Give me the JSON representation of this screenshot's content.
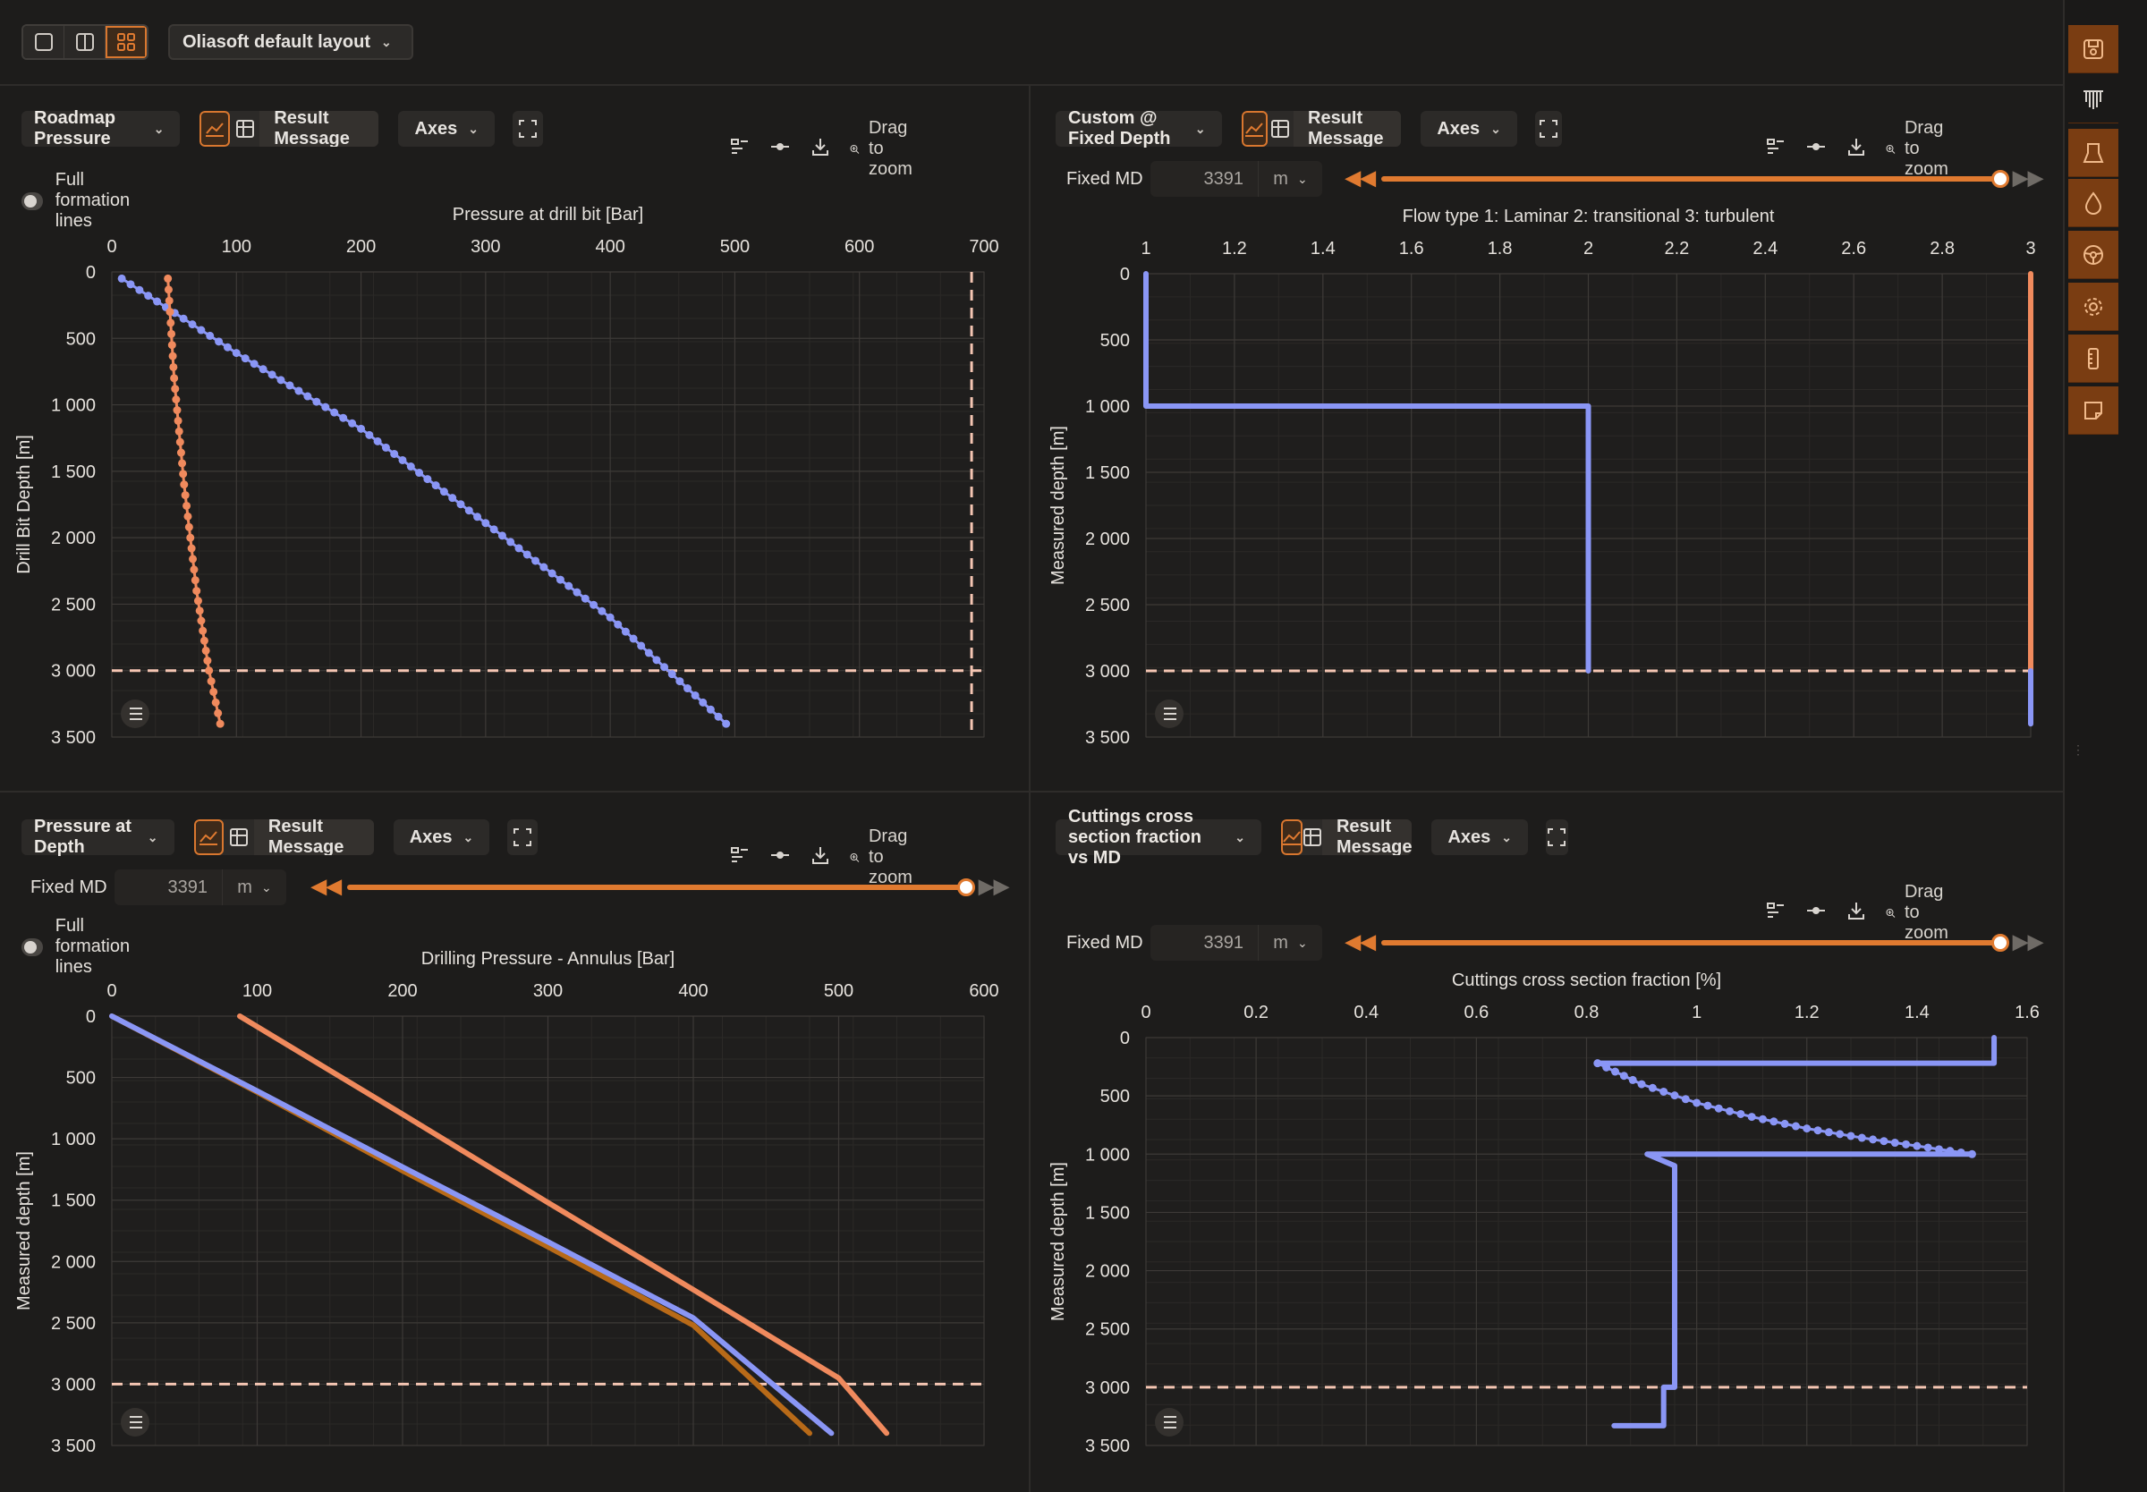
{
  "toolbar": {
    "layout_label": "Oliasoft default layout",
    "view_buttons": [
      "single-view-icon",
      "split-view-icon",
      "grid-view-icon"
    ]
  },
  "sidebar": {
    "icons": [
      "save-icon",
      "well-schematic-icon",
      "bha-icon",
      "fluid-icon",
      "steering-wheel-icon",
      "settings-gear-icon",
      "ruler-icon",
      "note-icon"
    ]
  },
  "common": {
    "result_message": "Result Message",
    "axes": "Axes",
    "drag_to_zoom": "Drag to zoom",
    "full_formation_lines": "Full formation lines",
    "fixed_md_label": "Fixed MD",
    "fixed_md_value": "3391",
    "fixed_md_unit": "m"
  },
  "panels": {
    "tl": {
      "title": "Roadmap Pressure"
    },
    "tr": {
      "title": "Custom @ Fixed Depth"
    },
    "bl": {
      "title": "Pressure at Depth"
    },
    "br": {
      "title": "Cuttings cross section fraction vs MD"
    }
  },
  "colors": {
    "blue": "#8a96f5",
    "orange": "#f08a5d",
    "brown": "#b86a18",
    "accent": "#e07a30",
    "dashed": "#f5c6b3"
  },
  "chart_data": [
    {
      "id": "tl",
      "type": "line",
      "title": "Pressure at drill bit [Bar]",
      "xlabel": "Pressure at drill bit [Bar]",
      "ylabel": "Drill Bit Depth [m]",
      "xlim": [
        0,
        700
      ],
      "ylim": [
        0,
        3500
      ],
      "xticks": [
        0,
        100,
        200,
        300,
        400,
        500,
        600,
        700
      ],
      "xtick_labels": [
        "0",
        "100",
        "200",
        "300",
        "400",
        "500",
        "600",
        "700"
      ],
      "yticks": [
        0,
        500,
        1000,
        1500,
        2000,
        2500,
        3000,
        3500
      ],
      "ytick_labels": [
        "0",
        "500",
        "1 000",
        "1 500",
        "2 000",
        "2 500",
        "3 000",
        "3 500"
      ],
      "hlines": [
        3000
      ],
      "vlines": [
        690
      ],
      "series": [
        {
          "color": "blue",
          "style": "dots",
          "x": [
            8,
            100,
            200,
            300,
            400,
            493
          ],
          "y": [
            50,
            610,
            1180,
            1890,
            2600,
            3400
          ]
        },
        {
          "color": "orange",
          "style": "dots",
          "x": [
            45,
            50,
            58,
            68,
            78,
            87
          ],
          "y": [
            50,
            800,
            1600,
            2400,
            3000,
            3400
          ]
        }
      ]
    },
    {
      "id": "tr",
      "type": "line",
      "title": "Flow type 1: Laminar 2: transitional 3: turbulent",
      "xlabel": "Flow type 1: Laminar 2: transitional 3: turbulent",
      "ylabel": "Measured depth [m]",
      "xlim": [
        1,
        3
      ],
      "ylim": [
        0,
        3500
      ],
      "xticks": [
        1,
        1.2,
        1.4,
        1.6,
        1.8,
        2,
        2.2,
        2.4,
        2.6,
        2.8,
        3
      ],
      "xtick_labels": [
        "1",
        "1.2",
        "1.4",
        "1.6",
        "1.8",
        "2",
        "2.2",
        "2.4",
        "2.6",
        "2.8",
        "3"
      ],
      "yticks": [
        0,
        500,
        1000,
        1500,
        2000,
        2500,
        3000,
        3500
      ],
      "ytick_labels": [
        "0",
        "500",
        "1 000",
        "1 500",
        "2 000",
        "2 500",
        "3 000",
        "3 500"
      ],
      "hlines": [
        3000
      ],
      "vlines": [],
      "series": [
        {
          "color": "blue",
          "style": "line",
          "x": [
            1,
            1,
            2,
            2
          ],
          "y": [
            0,
            1000,
            1000,
            3000
          ]
        },
        {
          "color": "orange",
          "style": "line",
          "x": [
            3,
            3
          ],
          "y": [
            0,
            3000
          ]
        },
        {
          "color": "blue",
          "style": "line",
          "x": [
            3,
            3
          ],
          "y": [
            3000,
            3400
          ]
        }
      ]
    },
    {
      "id": "bl",
      "type": "line",
      "title": "Drilling Pressure - Annulus [Bar]",
      "xlabel": "Drilling Pressure - Annulus [Bar]",
      "ylabel": "Measured depth [m]",
      "xlim": [
        0,
        600
      ],
      "ylim": [
        0,
        3500
      ],
      "xticks": [
        0,
        100,
        200,
        300,
        400,
        500,
        600
      ],
      "xtick_labels": [
        "0",
        "100",
        "200",
        "300",
        "400",
        "500",
        "600"
      ],
      "yticks": [
        0,
        500,
        1000,
        1500,
        2000,
        2500,
        3000,
        3500
      ],
      "ytick_labels": [
        "0",
        "500",
        "1 000",
        "1 500",
        "2 000",
        "2 500",
        "3 000",
        "3 500"
      ],
      "hlines": [
        3000
      ],
      "vlines": [],
      "series": [
        {
          "color": "brown",
          "style": "line",
          "x": [
            0,
            100,
            200,
            300,
            400,
            480
          ],
          "y": [
            0,
            620,
            1260,
            1880,
            2520,
            3400
          ]
        },
        {
          "color": "blue",
          "style": "line",
          "x": [
            0,
            100,
            200,
            300,
            400,
            495
          ],
          "y": [
            0,
            610,
            1230,
            1840,
            2460,
            3400
          ]
        },
        {
          "color": "orange",
          "style": "line",
          "x": [
            88,
            200,
            300,
            400,
            500,
            533
          ],
          "y": [
            0,
            800,
            1520,
            2230,
            2950,
            3400
          ]
        }
      ]
    },
    {
      "id": "br",
      "type": "line",
      "title": "Cuttings cross section fraction [%]",
      "xlabel": "Cuttings cross section fraction [%]",
      "ylabel": "Measured depth [m]",
      "xlim": [
        0,
        1.6
      ],
      "ylim": [
        0,
        3500
      ],
      "xticks": [
        0,
        0.2,
        0.4,
        0.6,
        0.8,
        1,
        1.2,
        1.4,
        1.6
      ],
      "xtick_labels": [
        "0",
        "0.2",
        "0.4",
        "0.6",
        "0.8",
        "1",
        "1.2",
        "1.4",
        "1.6"
      ],
      "yticks": [
        0,
        500,
        1000,
        1500,
        2000,
        2500,
        3000,
        3500
      ],
      "ytick_labels": [
        "0",
        "500",
        "1 000",
        "1 500",
        "2 000",
        "2 500",
        "3 000",
        "3 500"
      ],
      "hlines": [
        3000
      ],
      "vlines": [],
      "series": [
        {
          "color": "blue",
          "style": "line",
          "x": [
            1.54,
            1.54,
            0.82
          ],
          "y": [
            0,
            220,
            220
          ]
        },
        {
          "color": "blue",
          "style": "dots",
          "x": [
            0.82,
            0.9,
            1.0,
            1.1,
            1.2,
            1.3,
            1.4,
            1.5
          ],
          "y": [
            220,
            400,
            560,
            680,
            780,
            860,
            930,
            1000
          ]
        },
        {
          "color": "blue",
          "style": "line",
          "x": [
            1.5,
            0.91,
            0.96,
            0.96,
            0.94,
            0.94,
            0.85
          ],
          "y": [
            1000,
            1000,
            1100,
            3000,
            3000,
            3330,
            3330
          ]
        }
      ]
    }
  ]
}
